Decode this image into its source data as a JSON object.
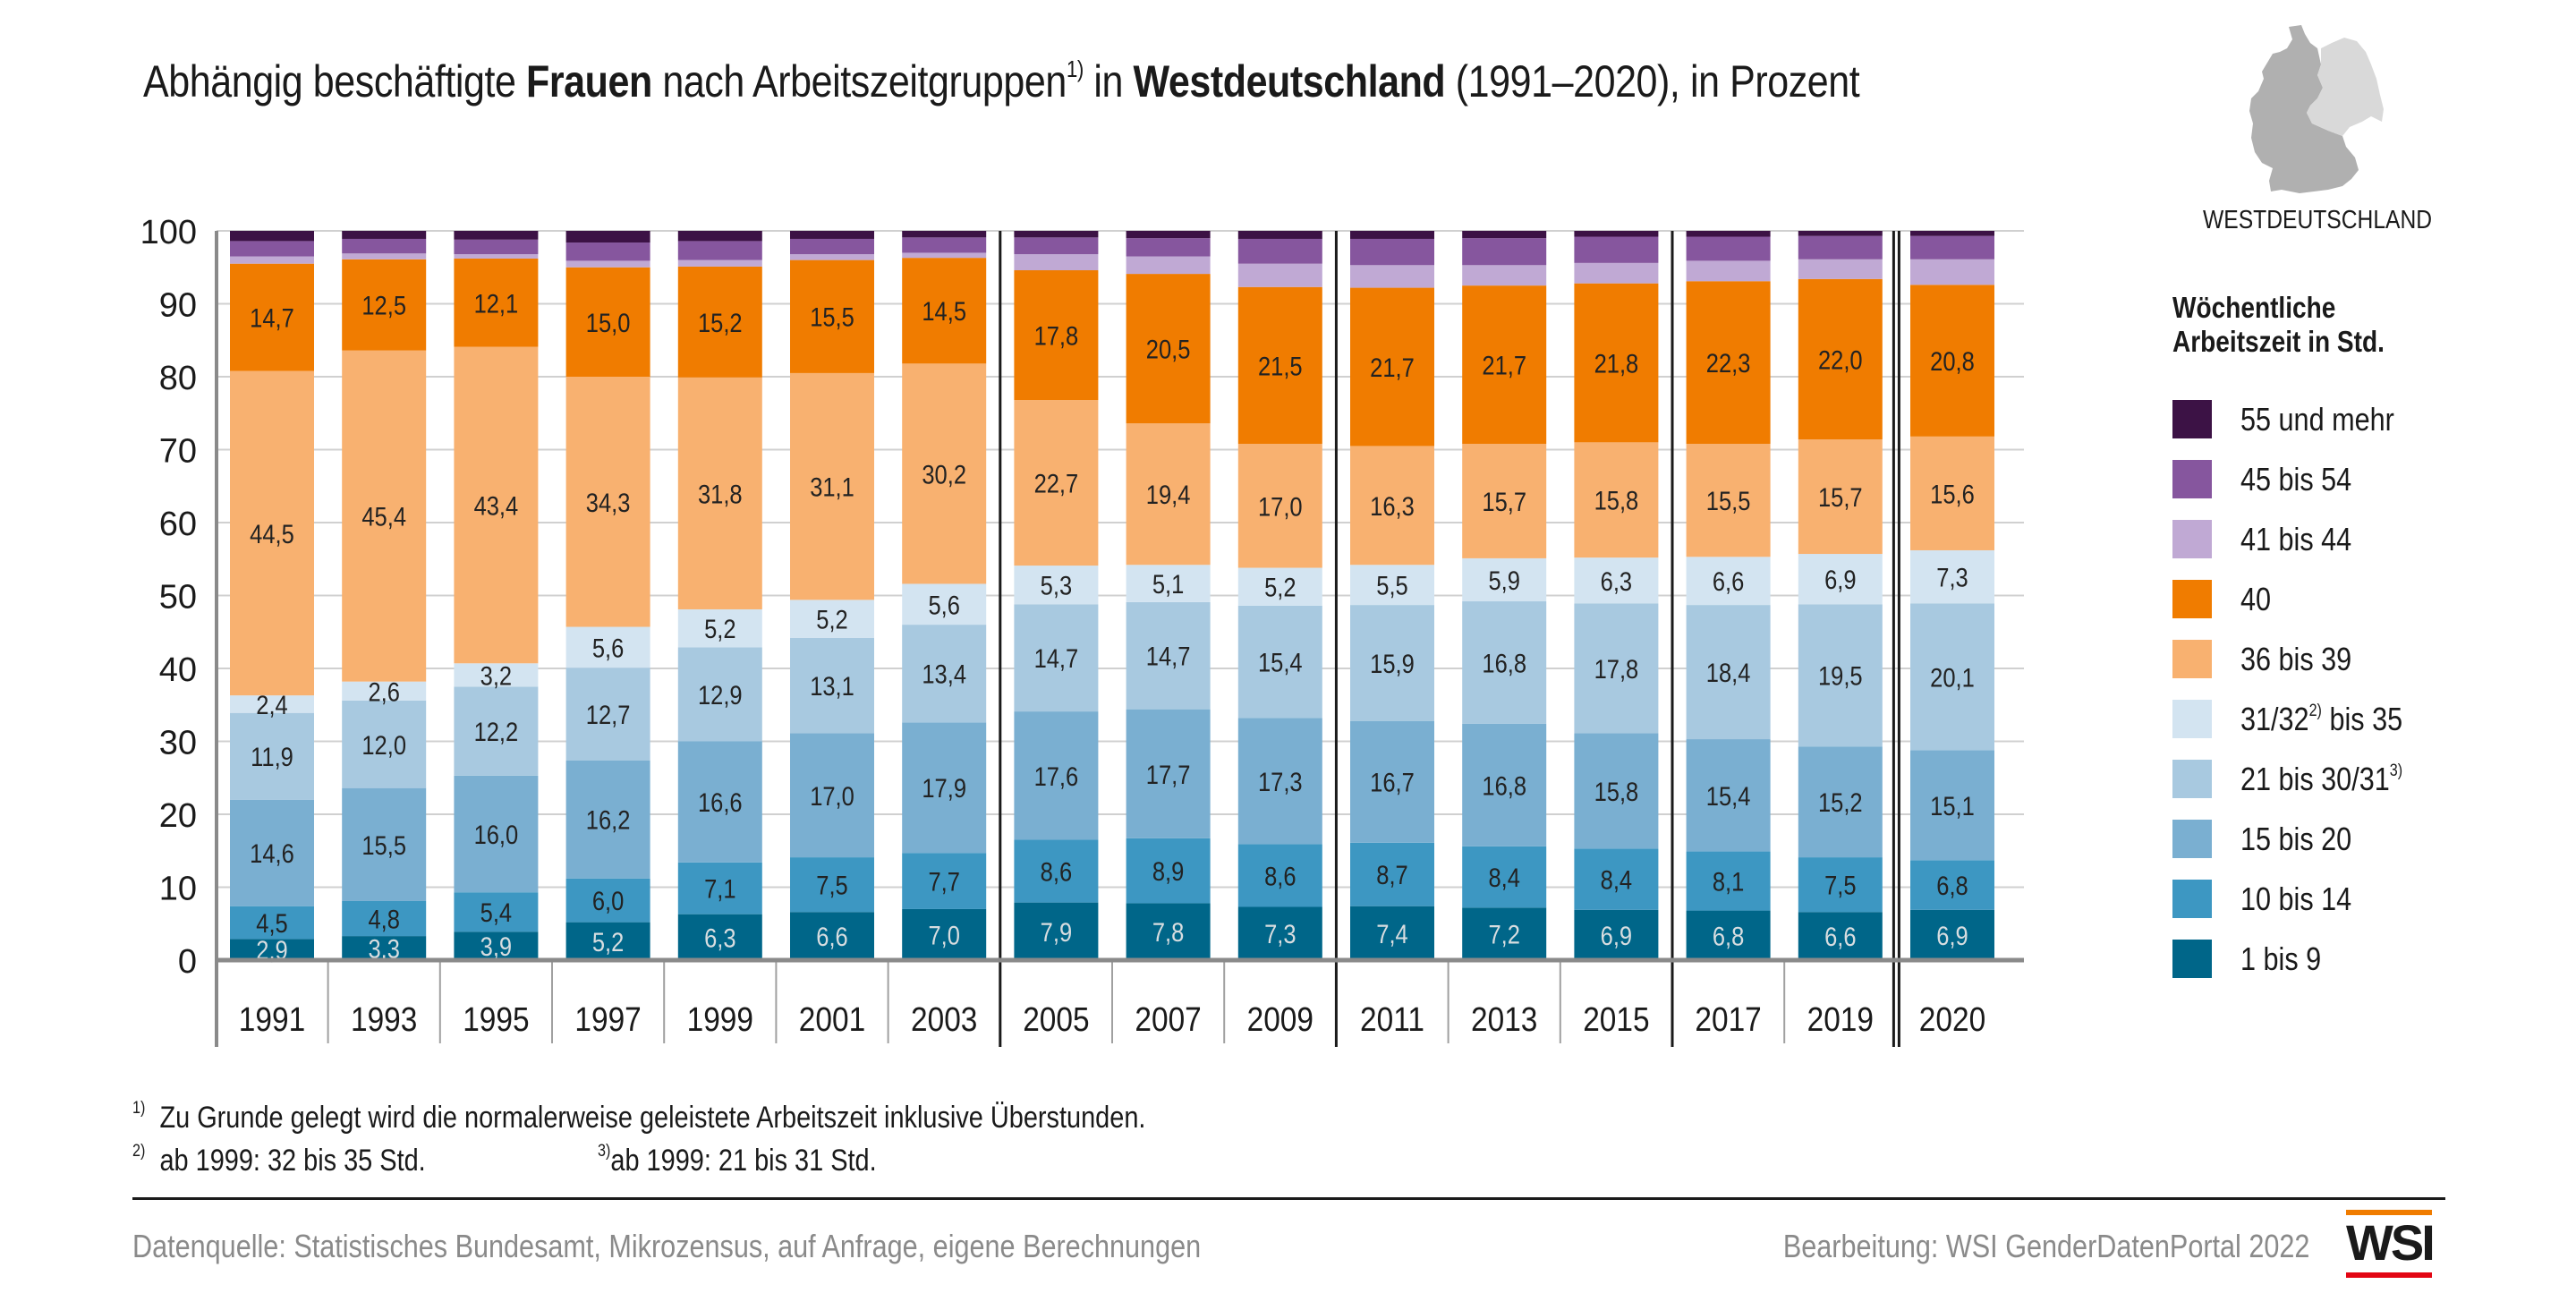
{
  "title": {
    "part1": "Abhängig beschäftigte ",
    "bold1": "Frauen",
    "part2": " nach Arbeitszeitgruppen",
    "sup": "1)",
    "part3": " in ",
    "bold2": "Westdeutschland",
    "part4": " (1991–2020), in Prozent"
  },
  "map": {
    "label": "WESTDEUTSCHLAND",
    "colors": {
      "west": "#b0b0b0",
      "east": "#d9d9d9"
    }
  },
  "legend": {
    "title_line1": "Wöchentliche",
    "title_line2": "Arbeitszeit in Std.",
    "items": [
      {
        "label": "55 und mehr",
        "sup": "",
        "suffix": "",
        "color": "#3c1245"
      },
      {
        "label": "45 bis 54",
        "sup": "",
        "suffix": "",
        "color": "#86569e"
      },
      {
        "label": "41 bis 44",
        "sup": "",
        "suffix": "",
        "color": "#c0a9d4"
      },
      {
        "label": "40",
        "sup": "",
        "suffix": "",
        "color": "#f07c00"
      },
      {
        "label": "36 bis 39",
        "sup": "",
        "suffix": "",
        "color": "#f8b170"
      },
      {
        "label": "31/32",
        "sup": "2)",
        "suffix": " bis 35",
        "color": "#d3e4f1"
      },
      {
        "label": "21 bis 30/31",
        "sup": "3)",
        "suffix": "",
        "color": "#a8c9e0"
      },
      {
        "label": "15 bis 20",
        "sup": "",
        "suffix": "",
        "color": "#7aafd1"
      },
      {
        "label": "10 bis 14",
        "sup": "",
        "suffix": "",
        "color": "#3d97c2"
      },
      {
        "label": "1 bis 9",
        "sup": "",
        "suffix": "",
        "color": "#006689"
      }
    ]
  },
  "chart_data": {
    "type": "bar",
    "stacked": true,
    "title": "Abhängig beschäftigte Frauen nach Arbeitszeitgruppen in Westdeutschland (1991–2020), in Prozent",
    "xlabel": "",
    "ylabel": "",
    "ylim": [
      0,
      100
    ],
    "yticks": [
      0,
      10,
      20,
      30,
      40,
      50,
      60,
      70,
      80,
      90,
      100
    ],
    "grid": true,
    "legend_position": "right",
    "categories": [
      "1991",
      "1993",
      "1995",
      "1997",
      "1999",
      "2001",
      "2003",
      "2005",
      "2007",
      "2009",
      "2011",
      "2013",
      "2015",
      "2017",
      "2019",
      "2020"
    ],
    "group_breaks_before": [
      "2005",
      "2011",
      "2017",
      "2020"
    ],
    "series": [
      {
        "name": "1 bis 9",
        "color": "#006689",
        "label_color": "#d8dde0",
        "labeled": true,
        "values": [
          2.9,
          3.3,
          3.9,
          5.2,
          6.3,
          6.6,
          7.0,
          7.9,
          7.8,
          7.3,
          7.4,
          7.2,
          6.9,
          6.8,
          6.6,
          6.9
        ]
      },
      {
        "name": "10 bis 14",
        "color": "#3d97c2",
        "label_color": "#222222",
        "labeled": true,
        "values": [
          4.5,
          4.8,
          5.4,
          6.0,
          7.1,
          7.5,
          7.7,
          8.6,
          8.9,
          8.6,
          8.7,
          8.4,
          8.4,
          8.1,
          7.5,
          6.8
        ]
      },
      {
        "name": "15 bis 20",
        "color": "#7aafd1",
        "label_color": "#222222",
        "labeled": true,
        "values": [
          14.6,
          15.5,
          16.0,
          16.2,
          16.6,
          17.0,
          17.9,
          17.6,
          17.7,
          17.3,
          16.7,
          16.8,
          15.8,
          15.4,
          15.2,
          15.1
        ]
      },
      {
        "name": "21 bis 30/31",
        "color": "#a8c9e0",
        "label_color": "#222222",
        "labeled": true,
        "values": [
          11.9,
          12.0,
          12.2,
          12.7,
          12.9,
          13.1,
          13.4,
          14.7,
          14.7,
          15.4,
          15.9,
          16.8,
          17.8,
          18.4,
          19.5,
          20.1
        ]
      },
      {
        "name": "31/32 bis 35",
        "color": "#d3e4f1",
        "label_color": "#222222",
        "labeled": true,
        "values": [
          2.4,
          2.6,
          3.2,
          5.6,
          5.2,
          5.2,
          5.6,
          5.3,
          5.1,
          5.2,
          5.5,
          5.9,
          6.3,
          6.6,
          6.9,
          7.3
        ]
      },
      {
        "name": "36 bis 39",
        "color": "#f8b170",
        "label_color": "#222222",
        "labeled": true,
        "values": [
          44.5,
          45.4,
          43.4,
          34.3,
          31.8,
          31.1,
          30.2,
          22.7,
          19.4,
          17.0,
          16.3,
          15.7,
          15.8,
          15.5,
          15.7,
          15.6
        ]
      },
      {
        "name": "40",
        "color": "#f07c00",
        "label_color": "#222222",
        "labeled": true,
        "values": [
          14.7,
          12.5,
          12.1,
          15.0,
          15.2,
          15.5,
          14.5,
          17.8,
          20.5,
          21.5,
          21.7,
          21.7,
          21.8,
          22.3,
          22.0,
          20.8
        ]
      },
      {
        "name": "41 bis 44",
        "color": "#c0a9d4",
        "labeled": false,
        "values": [
          1.0,
          0.8,
          0.6,
          0.9,
          0.9,
          0.8,
          0.7,
          2.2,
          2.4,
          3.2,
          3.1,
          2.8,
          2.8,
          2.8,
          2.7,
          3.5
        ]
      },
      {
        "name": "45 bis 54",
        "color": "#86569e",
        "labeled": false,
        "values": [
          2.1,
          2.0,
          2.0,
          2.5,
          2.6,
          2.1,
          2.1,
          2.3,
          2.5,
          3.4,
          3.6,
          3.7,
          3.6,
          3.3,
          3.2,
          3.2
        ]
      },
      {
        "name": "55 und mehr",
        "color": "#3c1245",
        "labeled": false,
        "values": [
          1.4,
          1.1,
          1.2,
          1.6,
          1.4,
          1.1,
          0.9,
          0.9,
          1.0,
          1.1,
          1.1,
          1.0,
          0.8,
          0.8,
          0.7,
          0.7
        ]
      }
    ]
  },
  "footnotes": {
    "fn1_marker": "1)",
    "fn1_text": "Zu Grunde gelegt wird die normalerweise geleistete Arbeitszeit inklusive Überstunden.",
    "fn2_marker": "2)",
    "fn2_text": "ab 1999: 32 bis 35 Std.",
    "fn3_marker": "3)",
    "fn3_text": "ab 1999: 21 bis 31 Std."
  },
  "footer": {
    "source": "Datenquelle: Statistisches Bundesamt, Mikrozensus, auf Anfrage, eigene Berechnungen",
    "credit": "Bearbeitung: WSI GenderDatenPortal 2022",
    "logo_text": "WSI"
  }
}
